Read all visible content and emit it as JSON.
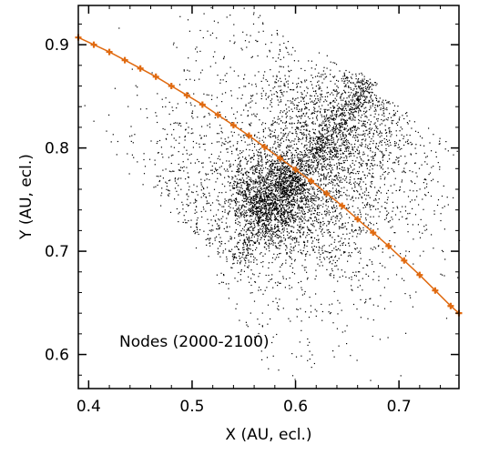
{
  "chart_data": {
    "type": "scatter",
    "xlabel": "X (AU, ecl.)",
    "ylabel": "Y (AU, ecl.)",
    "xlim": [
      0.39,
      0.758
    ],
    "ylim": [
      0.567,
      0.938
    ],
    "xticks": [
      "0.4",
      "0.5",
      "0.6",
      "0.7"
    ],
    "yticks": [
      "0.6",
      "0.7",
      "0.8",
      "0.9"
    ],
    "xtick_values": [
      0.4,
      0.5,
      0.6,
      0.7
    ],
    "ytick_values": [
      0.6,
      0.7,
      0.8,
      0.9
    ],
    "annotation": "Nodes (2000-2100)",
    "grid": false,
    "series": [
      {
        "kind": "curve",
        "color": "#e06a10",
        "points": [
          [
            0.39,
            0.907
          ],
          [
            0.405,
            0.9
          ],
          [
            0.42,
            0.893
          ],
          [
            0.435,
            0.885
          ],
          [
            0.45,
            0.877
          ],
          [
            0.465,
            0.869
          ],
          [
            0.48,
            0.86
          ],
          [
            0.495,
            0.851
          ],
          [
            0.51,
            0.842
          ],
          [
            0.525,
            0.832
          ],
          [
            0.54,
            0.822
          ],
          [
            0.555,
            0.812
          ],
          [
            0.57,
            0.801
          ],
          [
            0.585,
            0.79
          ],
          [
            0.6,
            0.779
          ],
          [
            0.615,
            0.768
          ],
          [
            0.63,
            0.756
          ],
          [
            0.645,
            0.744
          ],
          [
            0.66,
            0.731
          ],
          [
            0.675,
            0.718
          ],
          [
            0.69,
            0.705
          ],
          [
            0.705,
            0.691
          ],
          [
            0.72,
            0.677
          ],
          [
            0.735,
            0.662
          ],
          [
            0.75,
            0.647
          ],
          [
            0.758,
            0.64
          ]
        ]
      },
      {
        "kind": "points",
        "color": "#000000",
        "clusters": [
          {
            "x0": 0.542,
            "y0": 0.692,
            "x1": 0.672,
            "y1": 0.868,
            "spread": 0.006,
            "count": 700
          },
          {
            "x0": 0.56,
            "y0": 0.72,
            "x1": 0.67,
            "y1": 0.86,
            "spread": 0.025,
            "count": 1500
          },
          {
            "x0": 0.555,
            "y0": 0.74,
            "x1": 0.6,
            "y1": 0.775,
            "spread": 0.018,
            "count": 900
          },
          {
            "x0": 0.52,
            "y0": 0.7,
            "x1": 0.64,
            "y1": 0.84,
            "spread": 0.045,
            "count": 1500
          },
          {
            "x0": 0.6,
            "y0": 0.7,
            "x1": 0.7,
            "y1": 0.84,
            "spread": 0.04,
            "count": 900
          },
          {
            "x0": 0.47,
            "y0": 0.76,
            "x1": 0.6,
            "y1": 0.9,
            "spread": 0.05,
            "count": 500
          },
          {
            "x0": 0.54,
            "y0": 0.64,
            "x1": 0.74,
            "y1": 0.76,
            "spread": 0.05,
            "count": 400
          }
        ]
      }
    ]
  }
}
